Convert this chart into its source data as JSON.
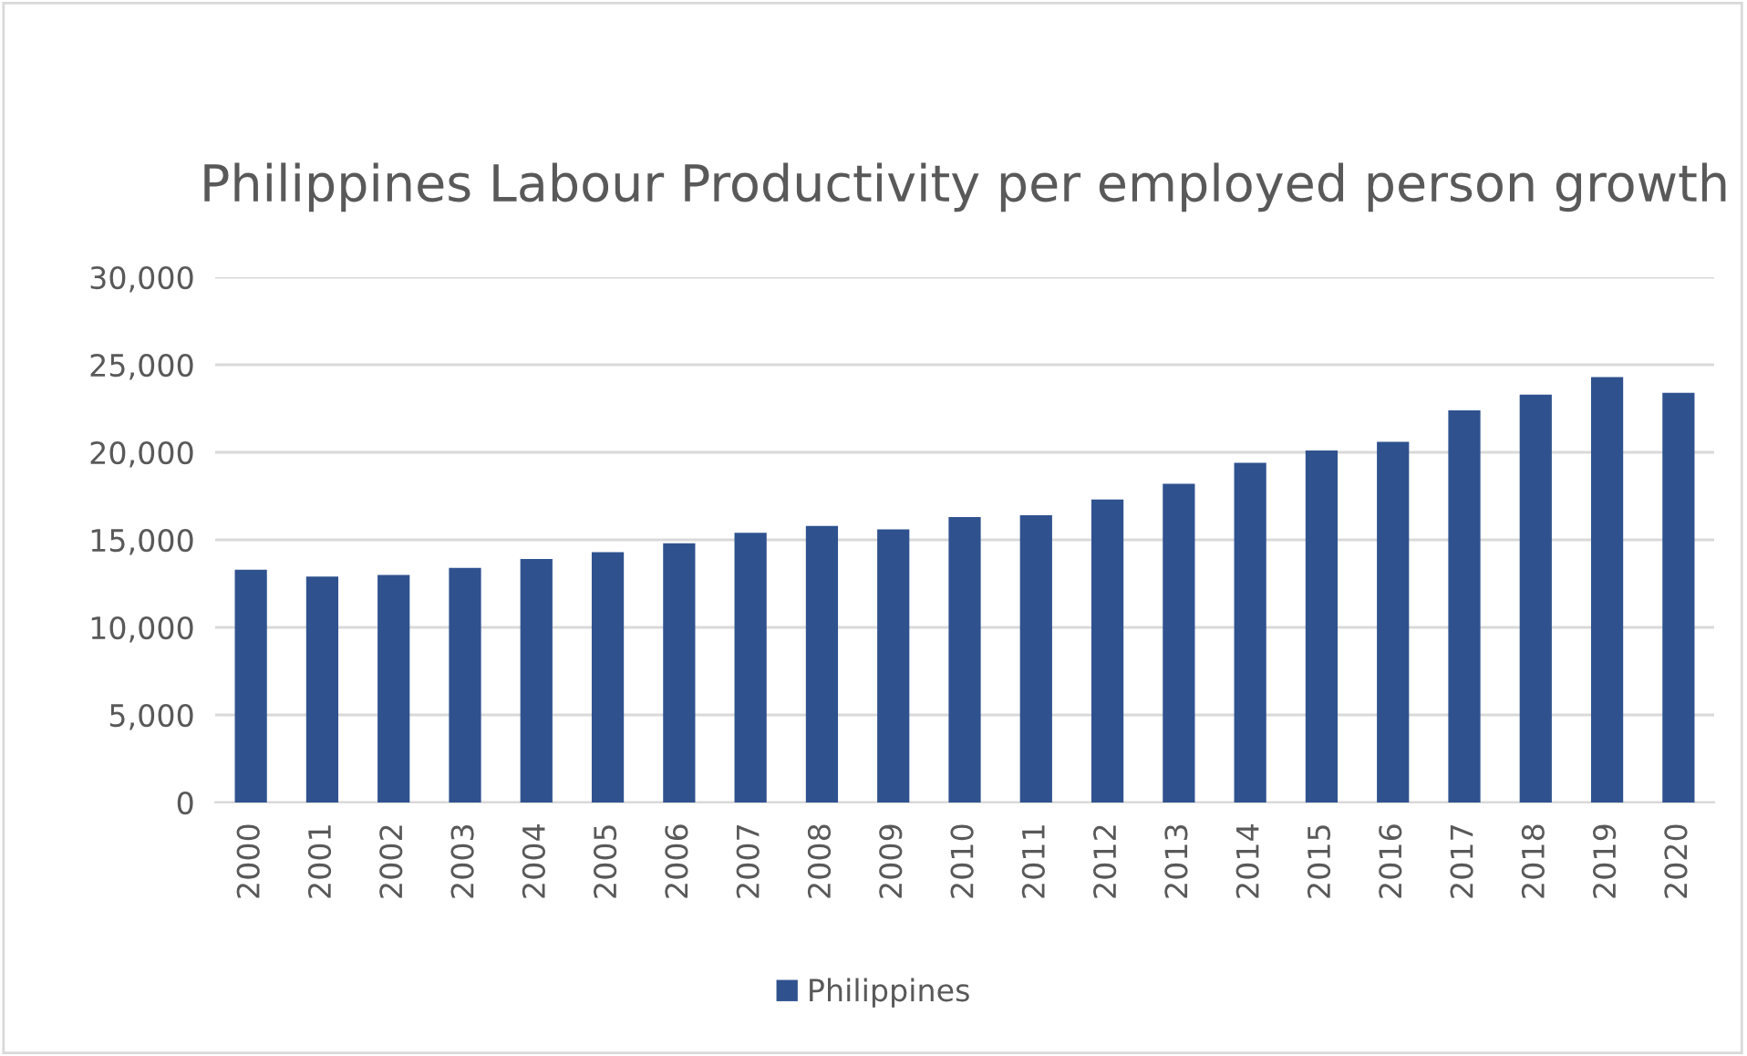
{
  "chart_data": {
    "type": "bar",
    "title": "Philippines Labour Productivity per employed person growth",
    "categories": [
      "2000",
      "2001",
      "2002",
      "2003",
      "2004",
      "2005",
      "2006",
      "2007",
      "2008",
      "2009",
      "2010",
      "2011",
      "2012",
      "2013",
      "2014",
      "2015",
      "2016",
      "2017",
      "2018",
      "2019",
      "2020"
    ],
    "series": [
      {
        "name": "Philippines",
        "color": "#2f528f",
        "values": [
          13300,
          12900,
          13000,
          13400,
          13900,
          14300,
          14800,
          15400,
          15800,
          15600,
          16300,
          16400,
          17300,
          18200,
          19400,
          20100,
          20600,
          22400,
          23300,
          24300,
          23400
        ]
      }
    ],
    "ylim": [
      0,
      30000
    ],
    "yticks": [
      {
        "value": 0,
        "label": "0"
      },
      {
        "value": 5000,
        "label": "5,000"
      },
      {
        "value": 10000,
        "label": "10,000"
      },
      {
        "value": 15000,
        "label": "15,000"
      },
      {
        "value": 20000,
        "label": "20,000"
      },
      {
        "value": 25000,
        "label": "25,000"
      },
      {
        "value": 30000,
        "label": "30,000"
      }
    ],
    "grid": "y",
    "legend": "bottom"
  }
}
